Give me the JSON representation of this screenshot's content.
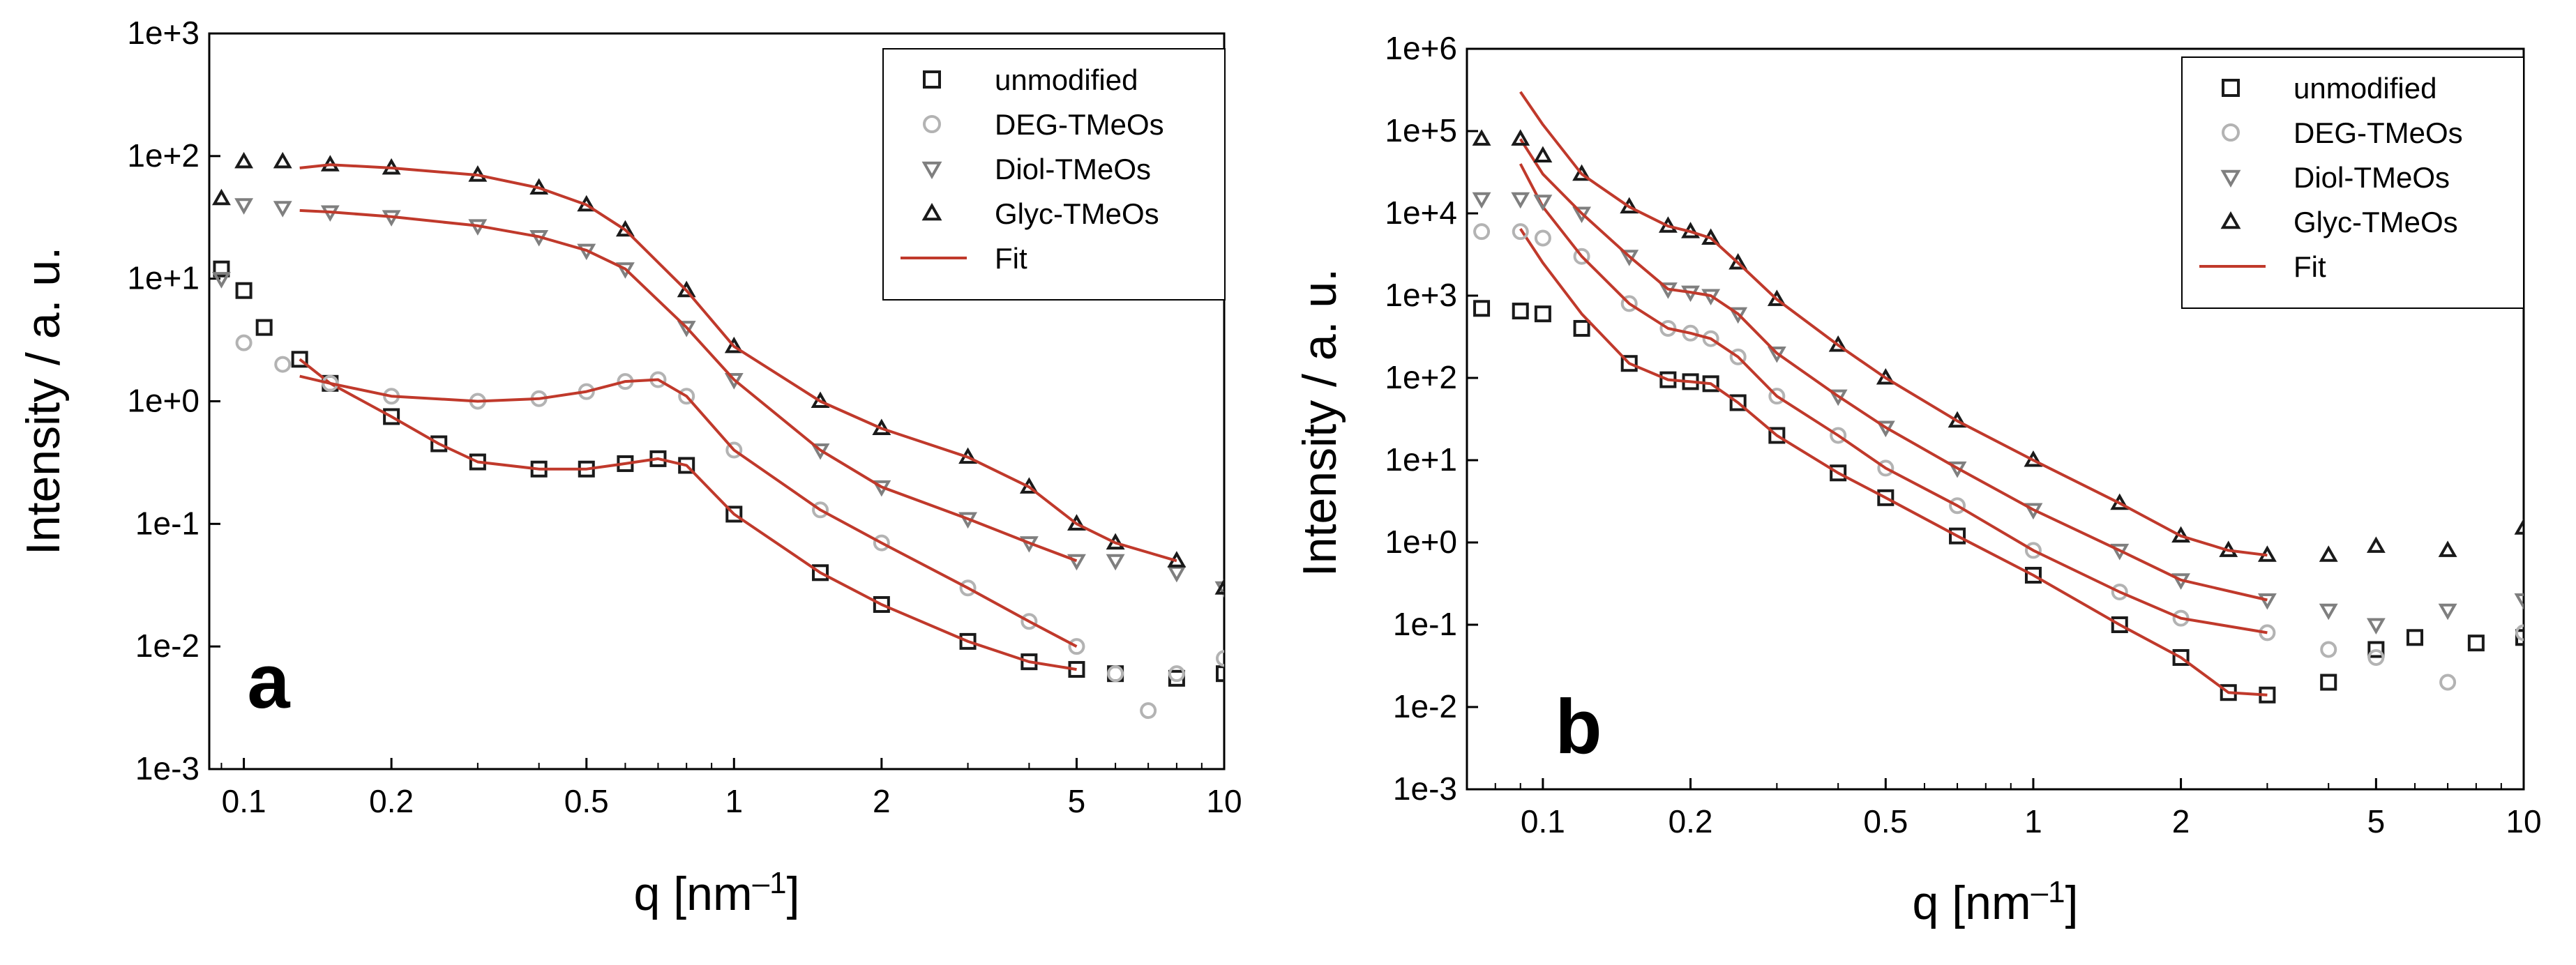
{
  "chart_data": [
    {
      "panel_label": "a",
      "type": "scatter",
      "xscale": "log",
      "yscale": "log",
      "xlim": [
        0.085,
        10
      ],
      "ylim": [
        0.001,
        1000
      ],
      "xticks": [
        0.1,
        0.2,
        0.5,
        1,
        2,
        5,
        10
      ],
      "xtick_labels": [
        "0.1",
        "0.2",
        "0.5",
        "1",
        "2",
        "5",
        "10"
      ],
      "yticks": [
        0.001,
        0.01,
        0.1,
        1,
        10,
        100,
        1000
      ],
      "ytick_labels": [
        "1e-3",
        "1e-2",
        "1e-1",
        "1e+0",
        "1e+1",
        "1e+2",
        "1e+3"
      ],
      "xlabel": "q [nm",
      "xlabel_sup": "–1",
      "xlabel_end": "]",
      "ylabel": "Intensity / a. u.",
      "legend_position": "top-right",
      "legend_fit_label": "Fit",
      "fit_color": "#c0392b",
      "series": [
        {
          "name": "unmodified",
          "marker": "square",
          "color": "#1a1a1a",
          "x": [
            0.09,
            0.1,
            0.11,
            0.13,
            0.15,
            0.2,
            0.25,
            0.3,
            0.4,
            0.5,
            0.6,
            0.7,
            0.8,
            1.0,
            1.5,
            2.0,
            3.0,
            4.0,
            5.0,
            6.0,
            8.0,
            10.0
          ],
          "y": [
            12,
            8,
            4,
            2.2,
            1.4,
            0.75,
            0.45,
            0.32,
            0.28,
            0.28,
            0.31,
            0.34,
            0.3,
            0.12,
            0.04,
            0.022,
            0.011,
            0.0075,
            0.0065,
            0.006,
            0.0055,
            0.006
          ],
          "fit_x": [
            0.13,
            0.15,
            0.2,
            0.25,
            0.3,
            0.4,
            0.5,
            0.6,
            0.7,
            0.8,
            1.0,
            1.5,
            2.0,
            3.0,
            4.0,
            5.0
          ],
          "fit_y": [
            2.2,
            1.4,
            0.75,
            0.45,
            0.32,
            0.28,
            0.28,
            0.31,
            0.34,
            0.3,
            0.12,
            0.04,
            0.022,
            0.011,
            0.0075,
            0.0065
          ]
        },
        {
          "name": "DEG-TMeOs",
          "marker": "circle",
          "color": "#b3b3b3",
          "x": [
            0.1,
            0.12,
            0.15,
            0.2,
            0.3,
            0.4,
            0.5,
            0.6,
            0.7,
            0.8,
            1.0,
            1.5,
            2.0,
            3.0,
            4.0,
            5.0,
            6.0,
            7.0,
            8.0,
            10.0
          ],
          "y": [
            3,
            2,
            1.4,
            1.1,
            1.0,
            1.05,
            1.2,
            1.45,
            1.5,
            1.1,
            0.4,
            0.13,
            0.07,
            0.03,
            0.016,
            0.01,
            0.006,
            0.003,
            0.006,
            0.008
          ],
          "fit_x": [
            0.13,
            0.15,
            0.2,
            0.3,
            0.4,
            0.5,
            0.6,
            0.7,
            0.8,
            1.0,
            1.5,
            2.0,
            3.0,
            4.0,
            5.0
          ],
          "fit_y": [
            1.6,
            1.4,
            1.1,
            1.0,
            1.05,
            1.2,
            1.45,
            1.5,
            1.1,
            0.4,
            0.13,
            0.07,
            0.03,
            0.016,
            0.01
          ]
        },
        {
          "name": "Diol-TMeOs",
          "marker": "triangle-down",
          "color": "#7f7f7f",
          "x": [
            0.09,
            0.1,
            0.12,
            0.15,
            0.2,
            0.3,
            0.4,
            0.5,
            0.6,
            0.8,
            1.0,
            1.5,
            2.0,
            3.0,
            4.0,
            5.0,
            6.0,
            8.0,
            10.0
          ],
          "y": [
            10,
            40,
            38,
            35,
            32,
            27,
            22,
            17,
            12,
            4,
            1.5,
            0.4,
            0.2,
            0.11,
            0.07,
            0.05,
            0.05,
            0.04,
            0.03
          ],
          "fit_x": [
            0.13,
            0.15,
            0.2,
            0.3,
            0.4,
            0.5,
            0.6,
            0.8,
            1.0,
            1.5,
            2.0,
            3.0,
            4.0,
            5.0
          ],
          "fit_y": [
            36,
            35,
            32,
            27,
            22,
            17,
            12,
            4,
            1.5,
            0.4,
            0.2,
            0.11,
            0.07,
            0.05
          ]
        },
        {
          "name": "Glyc-TMeOs",
          "marker": "triangle-up",
          "color": "#1a1a1a",
          "x": [
            0.09,
            0.1,
            0.12,
            0.15,
            0.2,
            0.3,
            0.4,
            0.5,
            0.6,
            0.8,
            1.0,
            1.5,
            2.0,
            3.0,
            4.0,
            5.0,
            6.0,
            8.0,
            10.0
          ],
          "y": [
            45,
            90,
            90,
            85,
            80,
            70,
            55,
            40,
            25,
            8,
            2.8,
            1.0,
            0.6,
            0.35,
            0.2,
            0.1,
            0.07,
            0.05,
            0.03
          ],
          "fit_x": [
            0.13,
            0.15,
            0.2,
            0.3,
            0.4,
            0.5,
            0.6,
            0.8,
            1.0,
            1.5,
            2.0,
            3.0,
            4.0,
            5.0,
            6.0,
            8.0
          ],
          "fit_y": [
            80,
            85,
            80,
            70,
            55,
            40,
            25,
            8,
            2.8,
            1.0,
            0.6,
            0.35,
            0.2,
            0.1,
            0.07,
            0.05
          ]
        }
      ]
    },
    {
      "panel_label": "b",
      "type": "scatter",
      "xscale": "log",
      "yscale": "log",
      "xlim": [
        0.07,
        10
      ],
      "ylim": [
        0.001,
        1000000
      ],
      "xticks": [
        0.1,
        0.2,
        0.5,
        1,
        2,
        5,
        10
      ],
      "xtick_labels": [
        "0.1",
        "0.2",
        "0.5",
        "1",
        "2",
        "5",
        "10"
      ],
      "yticks": [
        0.001,
        0.01,
        0.1,
        1,
        10,
        100,
        1000,
        10000,
        100000,
        1000000
      ],
      "ytick_labels": [
        "1e-3",
        "1e-2",
        "1e-1",
        "1e+0",
        "1e+1",
        "1e+2",
        "1e+3",
        "1e+4",
        "1e+5",
        "1e+6"
      ],
      "xlabel": "q [nm",
      "xlabel_sup": "–1",
      "xlabel_end": "]",
      "ylabel": "Intensity / a. u.",
      "legend_position": "top-right",
      "legend_fit_label": "Fit",
      "fit_color": "#c0392b",
      "series": [
        {
          "name": "unmodified",
          "marker": "square",
          "color": "#1a1a1a",
          "x": [
            0.075,
            0.09,
            0.1,
            0.12,
            0.15,
            0.18,
            0.2,
            0.22,
            0.25,
            0.3,
            0.4,
            0.5,
            0.7,
            1.0,
            1.5,
            2.0,
            2.5,
            3.0,
            4.0,
            5.0,
            6.0,
            8.0,
            10.0
          ],
          "y": [
            700,
            650,
            600,
            400,
            150,
            95,
            90,
            85,
            50,
            20,
            7,
            3.5,
            1.2,
            0.4,
            0.1,
            0.04,
            0.015,
            0.014,
            0.02,
            0.05,
            0.07,
            0.06,
            0.07
          ],
          "fit_x": [
            0.09,
            0.1,
            0.12,
            0.15,
            0.18,
            0.2,
            0.22,
            0.25,
            0.3,
            0.4,
            0.5,
            0.7,
            1.0,
            1.5,
            2.0,
            2.5,
            3.0
          ],
          "fit_y": [
            6500,
            2500,
            600,
            150,
            95,
            90,
            85,
            50,
            20,
            7,
            3.5,
            1.2,
            0.4,
            0.1,
            0.04,
            0.015,
            0.014
          ]
        },
        {
          "name": "DEG-TMeOs",
          "marker": "circle",
          "color": "#b3b3b3",
          "x": [
            0.075,
            0.09,
            0.1,
            0.12,
            0.15,
            0.18,
            0.2,
            0.22,
            0.25,
            0.3,
            0.4,
            0.5,
            0.7,
            1.0,
            1.5,
            2.0,
            3.0,
            4.0,
            5.0,
            7.0,
            10.0
          ],
          "y": [
            6000,
            6000,
            5000,
            3000,
            800,
            400,
            350,
            300,
            180,
            60,
            20,
            8,
            2.8,
            0.8,
            0.25,
            0.12,
            0.08,
            0.05,
            0.04,
            0.02,
            0.08
          ],
          "fit_x": [
            0.09,
            0.1,
            0.12,
            0.15,
            0.18,
            0.2,
            0.22,
            0.25,
            0.3,
            0.4,
            0.5,
            0.7,
            1.0,
            1.5,
            2.0,
            3.0
          ],
          "fit_y": [
            40000,
            12000,
            3000,
            800,
            400,
            350,
            300,
            180,
            60,
            20,
            8,
            2.8,
            0.8,
            0.25,
            0.12,
            0.08
          ]
        },
        {
          "name": "Diol-TMeOs",
          "marker": "triangle-down",
          "color": "#7f7f7f",
          "x": [
            0.075,
            0.09,
            0.1,
            0.12,
            0.15,
            0.18,
            0.2,
            0.22,
            0.25,
            0.3,
            0.4,
            0.5,
            0.7,
            1.0,
            1.5,
            2.0,
            3.0,
            4.0,
            5.0,
            7.0,
            10.0
          ],
          "y": [
            15000,
            15000,
            14000,
            10000,
            3000,
            1200,
            1100,
            1000,
            600,
            200,
            60,
            25,
            8,
            2.5,
            0.8,
            0.35,
            0.2,
            0.15,
            0.1,
            0.15,
            0.2
          ],
          "fit_x": [
            0.09,
            0.1,
            0.12,
            0.15,
            0.18,
            0.2,
            0.22,
            0.25,
            0.3,
            0.4,
            0.5,
            0.7,
            1.0,
            1.5,
            2.0,
            3.0
          ],
          "fit_y": [
            80000,
            30000,
            10000,
            3000,
            1200,
            1100,
            1000,
            600,
            200,
            60,
            25,
            8,
            2.5,
            0.8,
            0.35,
            0.2
          ]
        },
        {
          "name": "Glyc-TMeOs",
          "marker": "triangle-up",
          "color": "#1a1a1a",
          "x": [
            0.075,
            0.09,
            0.1,
            0.12,
            0.15,
            0.18,
            0.2,
            0.22,
            0.25,
            0.3,
            0.4,
            0.5,
            0.7,
            1.0,
            1.5,
            2.0,
            2.5,
            3.0,
            4.0,
            5.0,
            7.0,
            10.0
          ],
          "y": [
            80000,
            80000,
            50000,
            30000,
            12000,
            7000,
            6000,
            5000,
            2500,
            900,
            250,
            100,
            30,
            10,
            3,
            1.2,
            0.8,
            0.7,
            0.7,
            0.9,
            0.8,
            1.5
          ],
          "fit_x": [
            0.09,
            0.1,
            0.12,
            0.15,
            0.18,
            0.2,
            0.22,
            0.25,
            0.3,
            0.4,
            0.5,
            0.7,
            1.0,
            1.5,
            2.0,
            2.5,
            3.0
          ],
          "fit_y": [
            300000,
            120000,
            30000,
            12000,
            7000,
            6000,
            5000,
            2500,
            900,
            250,
            100,
            30,
            10,
            3,
            1.2,
            0.8,
            0.7
          ]
        }
      ]
    }
  ]
}
